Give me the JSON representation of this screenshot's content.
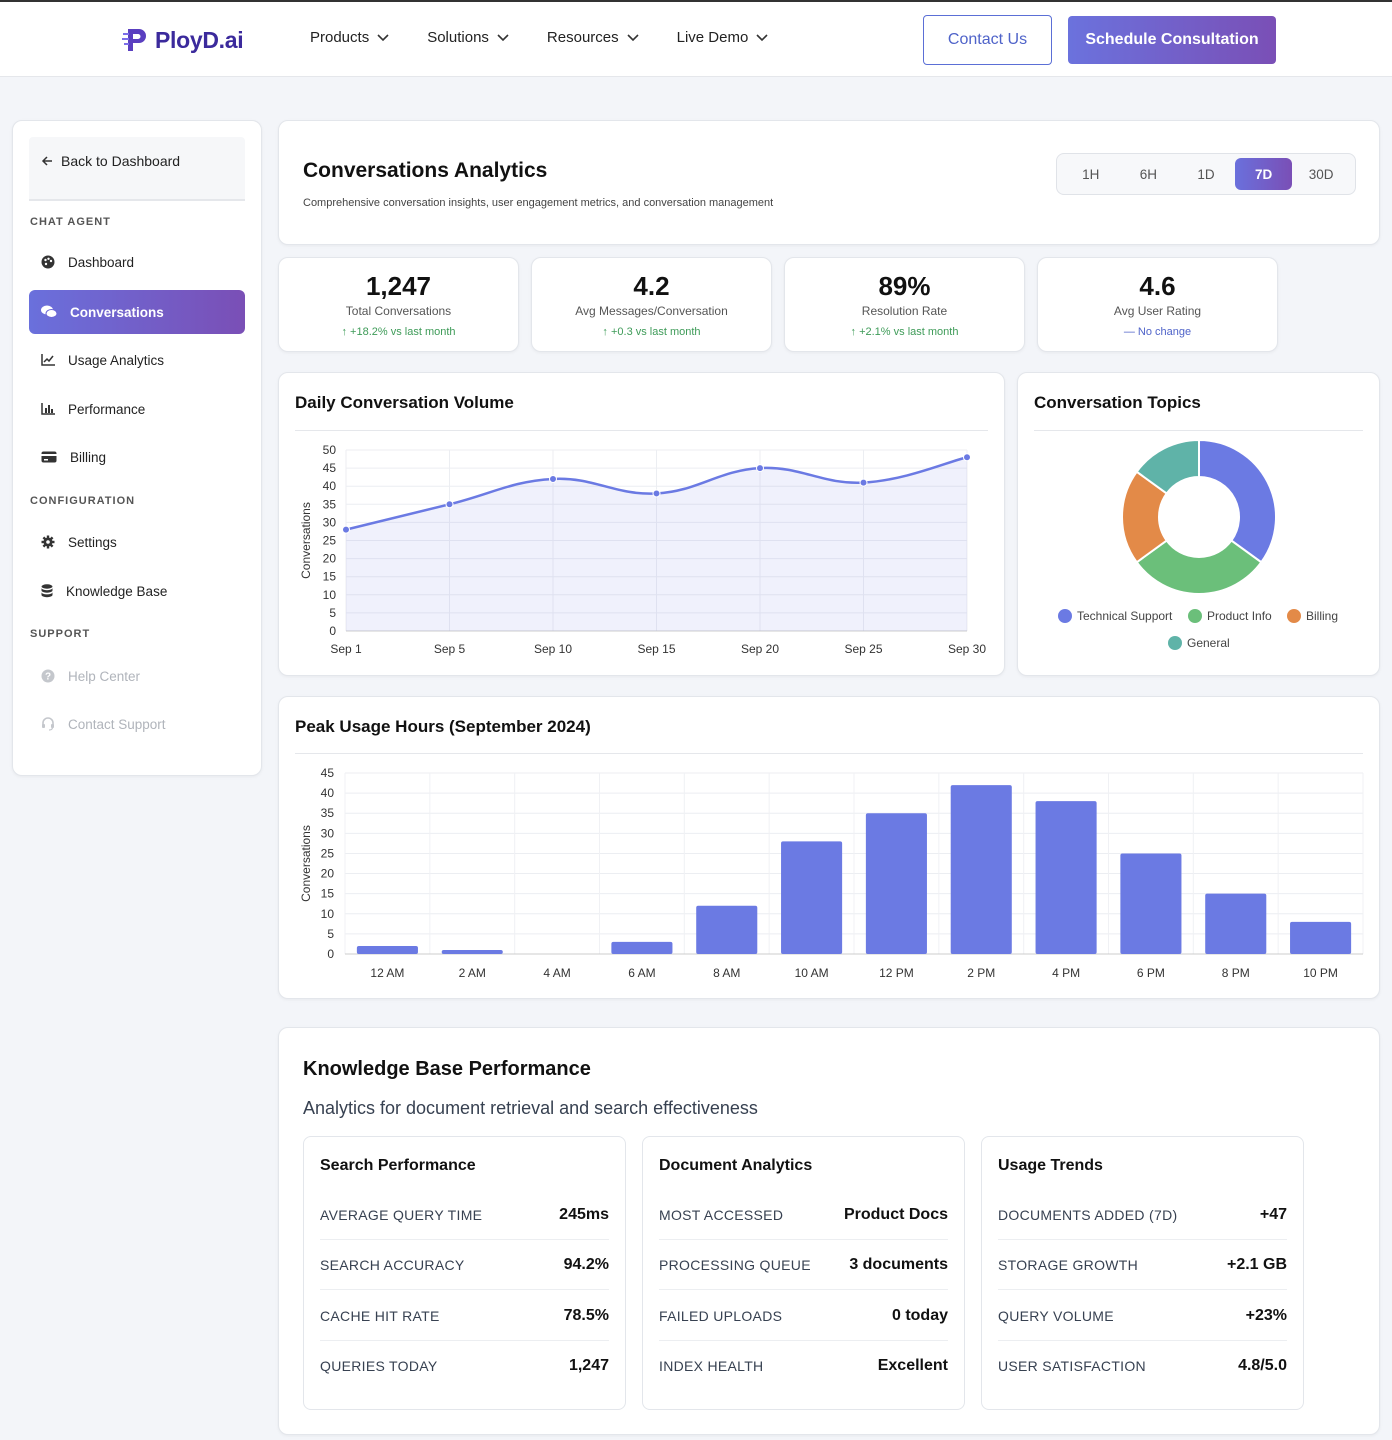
{
  "brand": {
    "name": "PloyD.ai"
  },
  "nav": [
    {
      "label": "Products"
    },
    {
      "label": "Solutions"
    },
    {
      "label": "Resources"
    },
    {
      "label": "Live Demo"
    }
  ],
  "header_actions": {
    "contact": "Contact Us",
    "schedule": "Schedule Consultation"
  },
  "sidebar": {
    "back": "Back to Dashboard",
    "sections": [
      "CHAT AGENT",
      "CONFIGURATION",
      "SUPPORT"
    ],
    "items": [
      {
        "label": "Dashboard",
        "icon": "palette-icon"
      },
      {
        "label": "Conversations",
        "icon": "comments-icon"
      },
      {
        "label": "Usage Analytics",
        "icon": "line-chart-icon"
      },
      {
        "label": "Performance",
        "icon": "bar-chart-icon"
      },
      {
        "label": "Billing",
        "icon": "credit-card-icon"
      },
      {
        "label": "Settings",
        "icon": "gear-icon"
      },
      {
        "label": "Knowledge Base",
        "icon": "database-icon"
      },
      {
        "label": "Help Center",
        "icon": "question-icon"
      },
      {
        "label": "Contact Support",
        "icon": "headset-icon"
      }
    ]
  },
  "page": {
    "title": "Conversations Analytics",
    "subtitle": "Comprehensive conversation insights, user engagement metrics, and conversation management",
    "ranges": [
      "1H",
      "6H",
      "1D",
      "7D",
      "30D"
    ],
    "active_range": "7D"
  },
  "stats": [
    {
      "value": "1,247",
      "label": "Total Conversations",
      "change": "↑ +18.2% vs last month"
    },
    {
      "value": "4.2",
      "label": "Avg Messages/Conversation",
      "change": "↑ +0.3 vs last month"
    },
    {
      "value": "89%",
      "label": "Resolution Rate",
      "change": "↑ +2.1% vs last month"
    },
    {
      "value": "4.6",
      "label": "Avg User Rating",
      "change": "— No change"
    }
  ],
  "colors": {
    "accent": "#6b7ae3",
    "green": "#6bbf7a",
    "orange": "#e38a48",
    "teal": "#5fb3a8",
    "positive": "#3e9b58"
  },
  "chart_data": [
    {
      "type": "line",
      "title": "Daily Conversation Volume",
      "ylabel": "Conversations",
      "xlabel": "",
      "categories": [
        "Sep 1",
        "Sep 5",
        "Sep 10",
        "Sep 15",
        "Sep 20",
        "Sep 25",
        "Sep 30"
      ],
      "values": [
        28,
        35,
        42,
        38,
        45,
        41,
        48
      ],
      "ylim": [
        0,
        50
      ],
      "yticks": [
        0,
        5,
        10,
        15,
        20,
        25,
        30,
        35,
        40,
        45,
        50
      ],
      "area_fill": true
    },
    {
      "type": "pie",
      "title": "Conversation Topics",
      "categories": [
        "Technical Support",
        "Product Info",
        "Billing",
        "General"
      ],
      "values": [
        35,
        30,
        20,
        15
      ],
      "donut": true
    },
    {
      "type": "bar",
      "title": "Peak Usage Hours (September 2024)",
      "ylabel": "Conversations",
      "categories": [
        "12 AM",
        "2 AM",
        "4 AM",
        "6 AM",
        "8 AM",
        "10 AM",
        "12 PM",
        "2 PM",
        "4 PM",
        "6 PM",
        "8 PM",
        "10 PM"
      ],
      "values": [
        2,
        1,
        0,
        3,
        12,
        28,
        35,
        42,
        38,
        25,
        15,
        8
      ],
      "ylim": [
        0,
        45
      ],
      "yticks": [
        0,
        5,
        10,
        15,
        20,
        25,
        30,
        35,
        40,
        45
      ]
    }
  ],
  "kb": {
    "title": "Knowledge Base Performance",
    "subtitle": "Analytics for document retrieval and search effectiveness",
    "cards": [
      {
        "title": "Search Performance",
        "rows": [
          {
            "k": "AVERAGE QUERY TIME",
            "v": "245ms"
          },
          {
            "k": "SEARCH ACCURACY",
            "v": "94.2%"
          },
          {
            "k": "CACHE HIT RATE",
            "v": "78.5%"
          },
          {
            "k": "QUERIES TODAY",
            "v": "1,247"
          }
        ]
      },
      {
        "title": "Document Analytics",
        "rows": [
          {
            "k": "MOST ACCESSED",
            "v": "Product Docs"
          },
          {
            "k": "PROCESSING QUEUE",
            "v": "3 documents"
          },
          {
            "k": "FAILED UPLOADS",
            "v": "0 today"
          },
          {
            "k": "INDEX HEALTH",
            "v": "Excellent"
          }
        ]
      },
      {
        "title": "Usage Trends",
        "rows": [
          {
            "k": "DOCUMENTS ADDED (7D)",
            "v": "+47"
          },
          {
            "k": "STORAGE GROWTH",
            "v": "+2.1 GB"
          },
          {
            "k": "QUERY VOLUME",
            "v": "+23%"
          },
          {
            "k": "USER SATISFACTION",
            "v": "4.8/5.0"
          }
        ]
      }
    ]
  }
}
